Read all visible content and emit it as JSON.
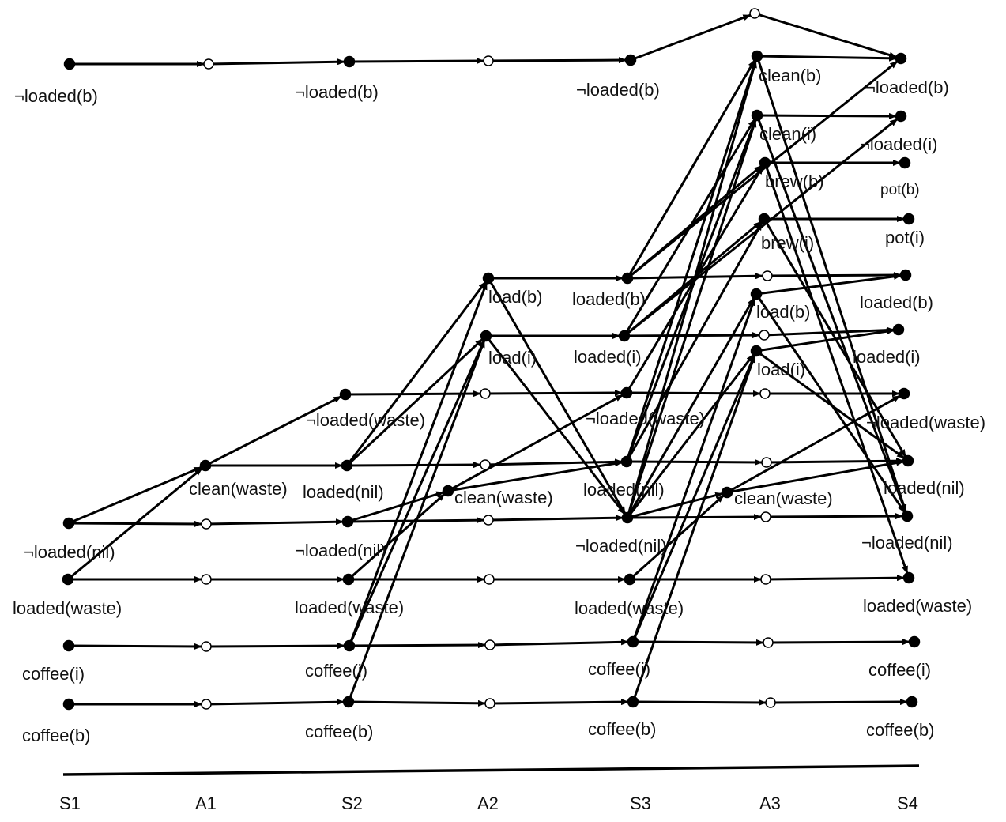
{
  "stages": [
    "S1",
    "A1",
    "S2",
    "A2",
    "S3",
    "A3",
    "S4"
  ],
  "labels": {
    "s1_notloaded_b": "¬loaded(b)",
    "s1_notloaded_nil": "¬loaded(nil)",
    "s1_loaded_waste": "loaded(waste)",
    "s1_coffee_i": "coffee(i)",
    "s1_coffee_b": "coffee(b)",
    "a1_clean_waste": "clean(waste)",
    "s2_notloaded_b": "¬loaded(b)",
    "s2_notloaded_waste": "¬loaded(waste)",
    "s2_loaded_nil": "loaded(nil)",
    "s2_notloaded_nil": "¬loaded(nil)",
    "s2_loaded_waste": "loaded(waste)",
    "s2_coffee_i": "coffee(i)",
    "s2_coffee_b": "coffee(b)",
    "a2_load_b": "load(b)",
    "a2_load_i": "load(i)",
    "a2_clean_waste": "clean(waste)",
    "s3_notloaded_b": "¬loaded(b)",
    "s3_loaded_b": "loaded(b)",
    "s3_loaded_i": "loaded(i)",
    "s3_notloaded_waste": "¬loaded(waste)",
    "s3_loaded_nil": "loaded(nil)",
    "s3_notloaded_nil": "¬loaded(nil)",
    "s3_loaded_waste": "loaded(waste)",
    "s3_coffee_i": "coffee(i)",
    "s3_coffee_b": "coffee(b)",
    "a3_clean_b": "clean(b)",
    "a3_clean_i": "clean(i)",
    "a3_brew_b": "brew(b)",
    "a3_brew_i": "brew(i)",
    "a3_load_b": "load(b)",
    "a3_load_i": "load(i)",
    "a3_clean_waste": "clean(waste)",
    "s4_notloaded_b": "¬loaded(b)",
    "s4_notloaded_i": "¬loaded(i)",
    "s4_pot_b": "pot(b)",
    "s4_pot_i": "pot(i)",
    "s4_loaded_b": "loaded(b)",
    "s4_loaded_i": "loaded(i)",
    "s4_notloaded_waste": "¬loaded(waste)",
    "s4_loaded_nil": "loaded(nil)",
    "s4_notloaded_nil": "¬loaded(nil)",
    "s4_loaded_waste": "loaded(waste)",
    "s4_coffee_i": "coffee(i)",
    "s4_coffee_b": "coffee(b)"
  }
}
